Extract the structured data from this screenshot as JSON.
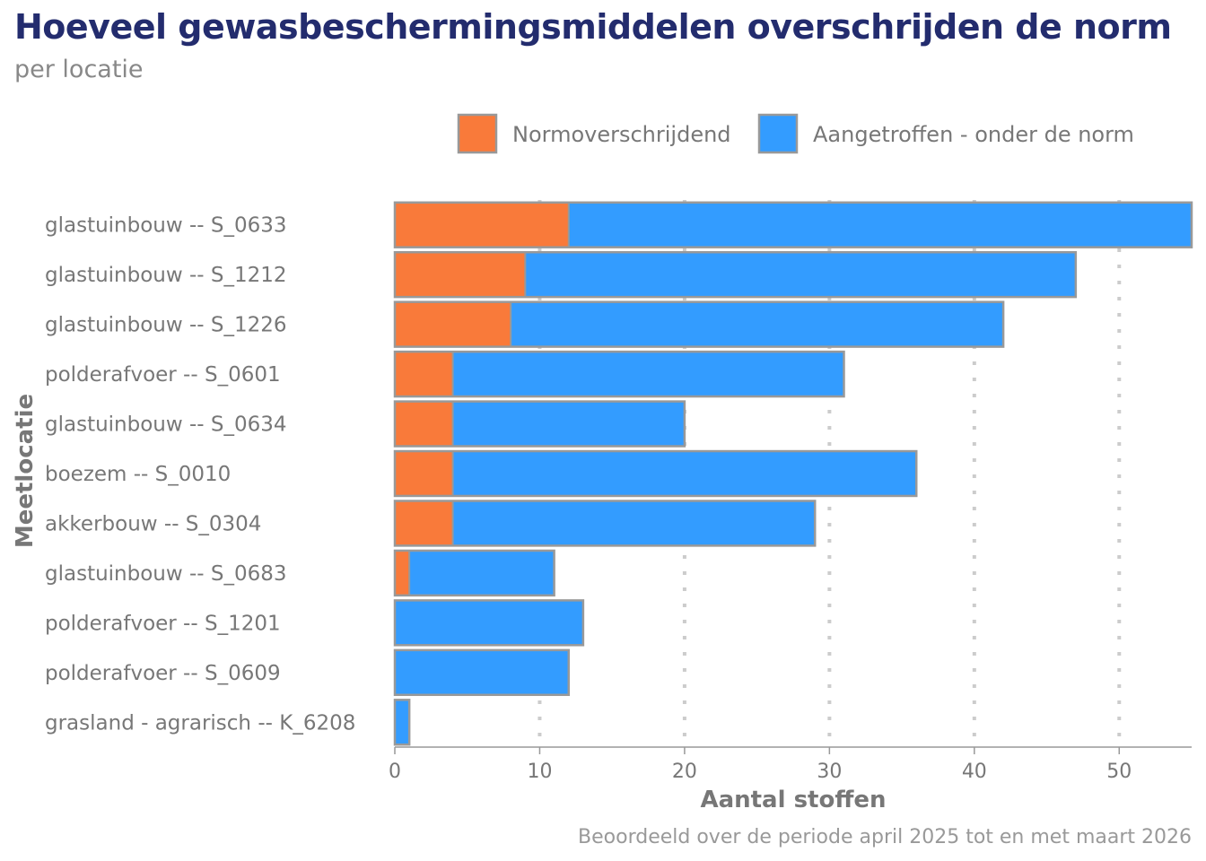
{
  "chart_data": {
    "type": "bar",
    "orientation": "horizontal",
    "stacked": true,
    "title": "Hoeveel gewasbeschermingsmiddelen overschrijden de norm",
    "subtitle": "per locatie",
    "xlabel": "Aantal stoffen",
    "ylabel": "Meetlocatie",
    "caption": "Beoordeeld over de periode april 2025 tot en met maart 2026",
    "xlim": [
      0,
      55
    ],
    "xticks": [
      0,
      10,
      20,
      30,
      40,
      50
    ],
    "grid": "vertical dotted",
    "legend_position": "top-right",
    "categories": [
      "glastuinbouw -- S_0633",
      "glastuinbouw -- S_1212",
      "glastuinbouw -- S_1226",
      "polderafvoer -- S_0601",
      "glastuinbouw -- S_0634",
      "boezem -- S_0010",
      "akkerbouw -- S_0304",
      "glastuinbouw -- S_0683",
      "polderafvoer -- S_1201",
      "polderafvoer -- S_0609",
      "grasland - agrarisch -- K_6208"
    ],
    "series": [
      {
        "name": "Normoverschrijdend",
        "color": "#F97A3A",
        "values": [
          12,
          9,
          8,
          4,
          4,
          4,
          4,
          1,
          0,
          0,
          0
        ]
      },
      {
        "name": "Aangetroffen - onder de norm",
        "color": "#339CFF",
        "values": [
          43,
          38,
          34,
          27,
          16,
          32,
          25,
          10,
          13,
          12,
          1
        ]
      }
    ]
  }
}
